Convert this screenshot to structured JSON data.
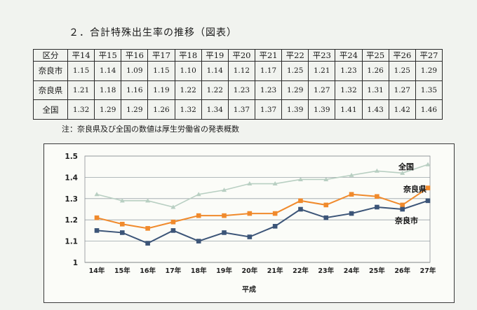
{
  "heading": "２．合計特殊出生率の推移（図表）",
  "table": {
    "corner": "区分",
    "years": [
      "平14",
      "平15",
      "平16",
      "平17",
      "平18",
      "平19",
      "平20",
      "平21",
      "平22",
      "平23",
      "平24",
      "平25",
      "平26",
      "平27"
    ],
    "rows": [
      {
        "label": "奈良市",
        "values": [
          "1.15",
          "1.14",
          "1.09",
          "1.15",
          "1.10",
          "1.14",
          "1.12",
          "1.17",
          "1.25",
          "1.21",
          "1.23",
          "1.26",
          "1.25",
          "1.29"
        ]
      },
      {
        "label": "奈良県",
        "values": [
          "1.21",
          "1.18",
          "1.16",
          "1.19",
          "1.22",
          "1.22",
          "1.23",
          "1.23",
          "1.29",
          "1.27",
          "1.32",
          "1.31",
          "1.27",
          "1.35"
        ]
      },
      {
        "label": "全国",
        "values": [
          "1.32",
          "1.29",
          "1.29",
          "1.26",
          "1.32",
          "1.34",
          "1.37",
          "1.37",
          "1.39",
          "1.39",
          "1.41",
          "1.43",
          "1.42",
          "1.46"
        ]
      }
    ]
  },
  "note": "注：奈良県及び全国の数値は厚生労働省の発表概数",
  "chart_data": {
    "type": "line",
    "categories": [
      "14年",
      "15年",
      "16年",
      "17年",
      "18年",
      "19年",
      "20年",
      "21年",
      "22年",
      "23年",
      "24年",
      "25年",
      "26年",
      "27年"
    ],
    "xlabel": "平成",
    "ylabel": "",
    "ylim": [
      1,
      1.5
    ],
    "yticks": [
      "1",
      "1.1",
      "1.2",
      "1.3",
      "1.4",
      "1.5"
    ],
    "grid": true,
    "series": [
      {
        "name": "全国",
        "color": "#b8cfc2",
        "marker": "triangle",
        "values": [
          1.32,
          1.29,
          1.29,
          1.26,
          1.32,
          1.34,
          1.37,
          1.37,
          1.39,
          1.39,
          1.41,
          1.43,
          1.42,
          1.46
        ]
      },
      {
        "name": "奈良県",
        "color": "#f08a2c",
        "marker": "square",
        "values": [
          1.21,
          1.18,
          1.16,
          1.19,
          1.22,
          1.22,
          1.23,
          1.23,
          1.29,
          1.27,
          1.32,
          1.31,
          1.27,
          1.35
        ]
      },
      {
        "name": "奈良市",
        "color": "#3c5578",
        "marker": "square",
        "values": [
          1.15,
          1.14,
          1.09,
          1.15,
          1.1,
          1.14,
          1.12,
          1.17,
          1.25,
          1.21,
          1.23,
          1.26,
          1.25,
          1.29
        ]
      }
    ]
  }
}
